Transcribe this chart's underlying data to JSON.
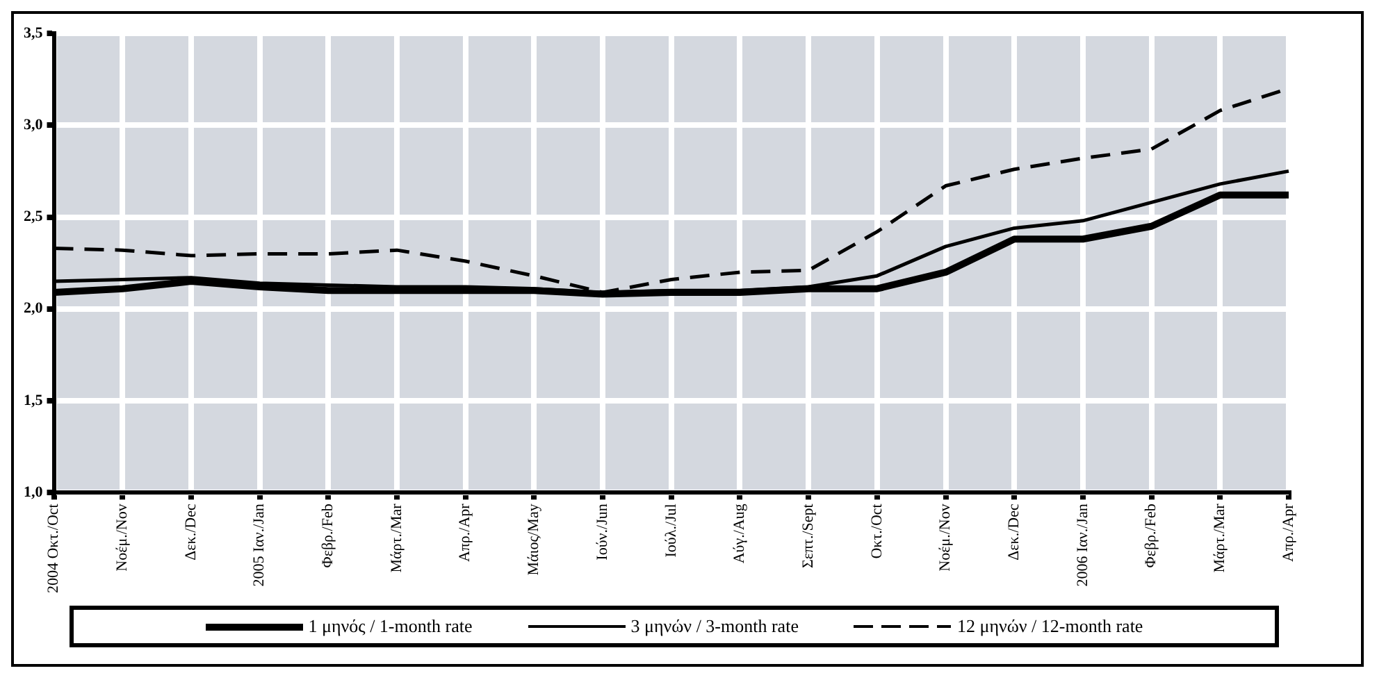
{
  "chart_data": {
    "type": "line",
    "categories": [
      "2004 Οκτ./Oct",
      "Νοέμ./Nov",
      "Δεκ./Dec",
      "2005 Ιαν./Jan",
      "Φεβρ./Feb",
      "Μάρτ./Mar",
      "Απρ./Apr",
      "Μάιος/May",
      "Ιούν./Jun",
      "Ιούλ./Jul",
      "Αύγ./Aug",
      "Σεπτ./Sept",
      "Οκτ./Oct",
      "Νοέμ./Nov",
      "Δεκ./Dec",
      "2006 Ιαν./Jan",
      "Φεβρ./Feb",
      "Μάρτ./Mar",
      "Απρ./Apr"
    ],
    "series": [
      {
        "name": "1 μηνός / 1-month rate",
        "color": "#000000",
        "line_style": "solid",
        "values": [
          2.09,
          2.11,
          2.15,
          2.12,
          2.1,
          2.1,
          2.1,
          2.1,
          2.08,
          2.09,
          2.09,
          2.11,
          2.11,
          2.2,
          2.38,
          2.38,
          2.45,
          2.62,
          2.62
        ]
      },
      {
        "name": "3 μηνών / 3-month rate",
        "color": "#000000",
        "line_style": "solid",
        "values": [
          2.15,
          2.16,
          2.17,
          2.14,
          2.13,
          2.12,
          2.12,
          2.11,
          2.09,
          2.1,
          2.1,
          2.12,
          2.18,
          2.34,
          2.44,
          2.48,
          2.58,
          2.68,
          2.75
        ]
      },
      {
        "name": "12 μηνών / 12-month rate",
        "color": "#000000",
        "line_style": "dashed",
        "values": [
          2.33,
          2.32,
          2.29,
          2.3,
          2.3,
          2.32,
          2.26,
          2.18,
          2.09,
          2.16,
          2.2,
          2.21,
          2.42,
          2.67,
          2.76,
          2.82,
          2.87,
          3.08,
          3.2
        ]
      }
    ],
    "ylim": [
      1.0,
      3.5
    ],
    "yticks": [
      {
        "value": 1.0,
        "label": "1,0"
      },
      {
        "value": 1.5,
        "label": "1,5"
      },
      {
        "value": 2.0,
        "label": "2,0"
      },
      {
        "value": 2.5,
        "label": "2,5"
      },
      {
        "value": 3.0,
        "label": "3,0"
      },
      {
        "value": 3.5,
        "label": "3,5"
      }
    ],
    "grid": true,
    "legend": "bottom",
    "marker": "none"
  }
}
